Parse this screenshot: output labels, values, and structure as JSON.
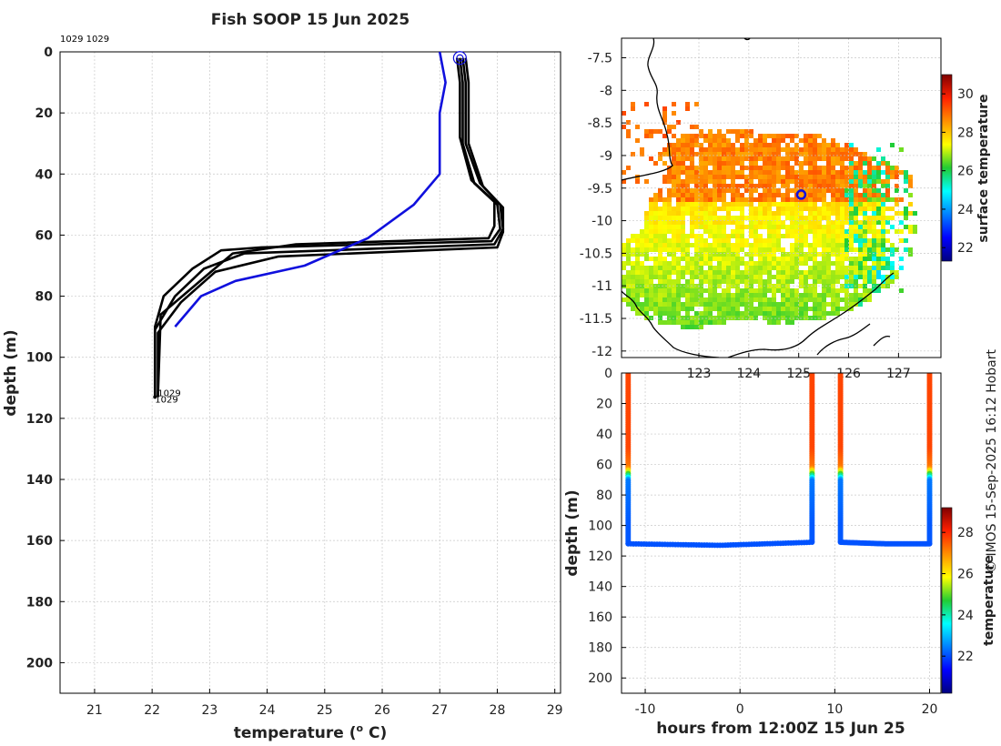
{
  "title": "Fish SOOP 15 Jun 2025",
  "credit": "© IMOS 15-Sep-2025 16:12 Hobart",
  "chart_data": [
    {
      "type": "line",
      "name": "profile",
      "xlabel": "temperature (",
      "xlabel_sup": "o",
      "xlabel_end": " C)",
      "ylabel": "depth (m)",
      "xlim": [
        20.4,
        29.1
      ],
      "ylim": [
        0,
        210
      ],
      "xticks": [
        "21",
        "22",
        "23",
        "24",
        "25",
        "26",
        "27",
        "28",
        "29"
      ],
      "yticks": [
        "0",
        "20",
        "40",
        "60",
        "80",
        "100",
        "120",
        "140",
        "160",
        "180",
        "200"
      ],
      "top_label": "1029 1029",
      "bottom_labels": [
        "1029",
        "1029"
      ],
      "series": [
        {
          "name": "profile-a",
          "color": "#000000",
          "points": [
            [
              27.35,
              2
            ],
            [
              27.4,
              10
            ],
            [
              27.4,
              30
            ],
            [
              27.6,
              43
            ],
            [
              28.0,
              50
            ],
            [
              28.05,
              58
            ],
            [
              27.9,
              62
            ],
            [
              23.9,
              64
            ],
            [
              23.2,
              65
            ],
            [
              22.7,
              71
            ],
            [
              22.2,
              80
            ],
            [
              22.05,
              90
            ],
            [
              22.05,
              113
            ]
          ]
        },
        {
          "name": "profile-b",
          "color": "#000000",
          "points": [
            [
              27.4,
              2
            ],
            [
              27.45,
              10
            ],
            [
              27.45,
              30
            ],
            [
              27.7,
              43
            ],
            [
              28.05,
              50
            ],
            [
              28.1,
              58
            ],
            [
              27.95,
              63
            ],
            [
              23.6,
              66
            ],
            [
              22.9,
              71
            ],
            [
              22.4,
              80
            ],
            [
              22.05,
              91
            ],
            [
              22.05,
              113
            ]
          ]
        },
        {
          "name": "profile-c",
          "color": "#000000",
          "points": [
            [
              27.45,
              2
            ],
            [
              27.5,
              10
            ],
            [
              27.5,
              30
            ],
            [
              27.75,
              44
            ],
            [
              28.1,
              51
            ],
            [
              28.1,
              59
            ],
            [
              28.0,
              64
            ],
            [
              24.2,
              67
            ],
            [
              23.1,
              72
            ],
            [
              22.5,
              82
            ],
            [
              22.1,
              92
            ],
            [
              22.1,
              113
            ]
          ]
        },
        {
          "name": "profile-d",
          "color": "#000000",
          "points": [
            [
              27.3,
              2
            ],
            [
              27.35,
              10
            ],
            [
              27.35,
              28
            ],
            [
              27.55,
              42
            ],
            [
              27.95,
              49
            ],
            [
              27.95,
              57
            ],
            [
              27.85,
              61
            ],
            [
              24.5,
              63
            ],
            [
              23.4,
              66
            ],
            [
              22.9,
              74
            ],
            [
              22.15,
              86
            ],
            [
              22.1,
              113
            ]
          ]
        },
        {
          "name": "profile-blue",
          "color": "#1010dd",
          "points": [
            [
              27.0,
              0
            ],
            [
              27.1,
              10
            ],
            [
              27.0,
              20
            ],
            [
              27.0,
              40
            ],
            [
              26.55,
              50
            ],
            [
              25.75,
              61
            ],
            [
              24.65,
              70
            ],
            [
              23.45,
              75
            ],
            [
              22.85,
              80
            ],
            [
              22.4,
              90
            ]
          ]
        }
      ],
      "markers": [
        {
          "x": 27.35,
          "y": 2
        }
      ]
    },
    {
      "type": "heatmap",
      "name": "map",
      "colorbar_label": "surface temperature",
      "colorbar_ticks": [
        "22",
        "24",
        "26",
        "28",
        "30"
      ],
      "colorbar_range": [
        21.3,
        31
      ],
      "xlim": [
        121.45,
        127.85
      ],
      "ylim": [
        -12.1,
        -7.2
      ],
      "xticks": [
        "123",
        "124",
        "125",
        "126",
        "127"
      ],
      "yticks": [
        "-7.5",
        "-8",
        "-8.5",
        "-9",
        "-9.5",
        "-10",
        "-10.5",
        "-11",
        "-11.5",
        "-12"
      ],
      "position_marker": {
        "lon": 125.05,
        "lat": -9.6
      }
    },
    {
      "type": "scatter",
      "name": "track",
      "xlabel": "hours from 12:00Z 15 Jun 25",
      "ylabel": "depth (m)",
      "colorbar_label": "temperature",
      "colorbar_ticks": [
        "22",
        "24",
        "26",
        "28"
      ],
      "colorbar_range": [
        20.2,
        29.2
      ],
      "xlim": [
        -12.5,
        21.2
      ],
      "ylim": [
        0,
        210
      ],
      "xticks": [
        "-10",
        "0",
        "10",
        "20"
      ],
      "yticks": [
        "0",
        "20",
        "40",
        "60",
        "80",
        "100",
        "120",
        "140",
        "160",
        "180",
        "200"
      ],
      "casts": [
        -11.8,
        7.6,
        10.6,
        20.0
      ],
      "max_depth": [
        112,
        111,
        111,
        112
      ],
      "bottom_tows": [
        {
          "from": -11.8,
          "to": 7.6,
          "depth": [
            112,
            113,
            111
          ]
        },
        {
          "from": 10.6,
          "to": 20.0,
          "depth": [
            111,
            112,
            112
          ]
        }
      ]
    }
  ]
}
